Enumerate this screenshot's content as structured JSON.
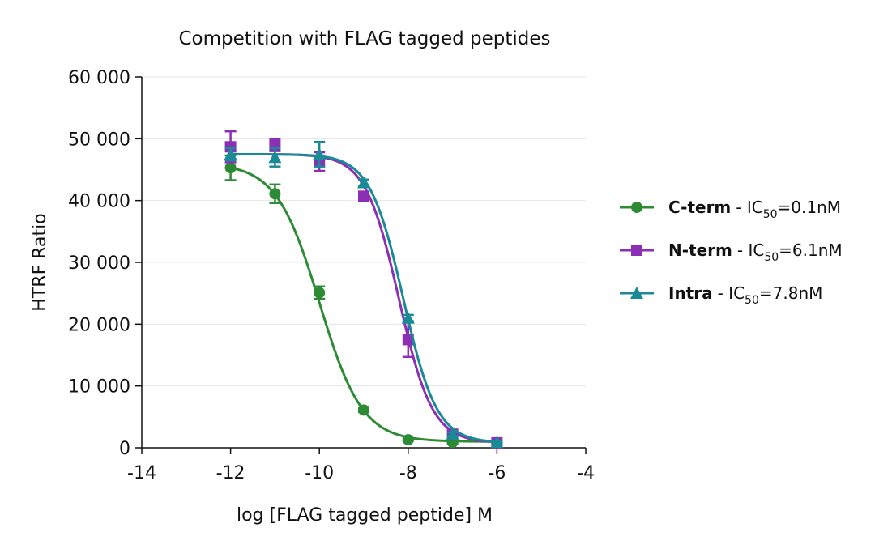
{
  "chart_data": {
    "type": "dose-response",
    "title": "Competition with FLAG tagged peptides",
    "x_label": "log [FLAG tagged peptide] M",
    "y_label": "HTRF Ratio",
    "xlim": [
      -14,
      -4
    ],
    "xticks": [
      -14,
      -12,
      -10,
      -8,
      -6,
      -4
    ],
    "ylim": [
      0,
      60000
    ],
    "yticks": [
      0,
      {
        "value": 10000,
        "label": "10 000"
      },
      {
        "value": 20000,
        "label": "20 000"
      },
      {
        "value": 30000,
        "label": "30 000"
      },
      {
        "value": 40000,
        "label": "40 000"
      },
      {
        "value": 50000,
        "label": "50 000"
      },
      {
        "value": 60000,
        "label": "60 000"
      }
    ],
    "grid": true,
    "legend": "right",
    "x": [
      -12,
      -11,
      -10,
      -9,
      -8,
      -7,
      -6
    ],
    "series": [
      {
        "name": "C-term",
        "color": "#2e8b35",
        "marker": "circle",
        "values": [
          45300,
          41100,
          25100,
          6100,
          1300,
          900,
          800
        ],
        "errors": [
          2000,
          1500,
          1000,
          300,
          200,
          200,
          150
        ],
        "ic50": {
          "prefix": "- IC",
          "sub": "50",
          "suffix": "=0.1nM"
        },
        "fit": {
          "top": 46000,
          "bottom": 1000,
          "log_ic50": -10,
          "hill": 0.9
        }
      },
      {
        "name": "N-term",
        "color": "#8b2fb5",
        "marker": "square",
        "values": [
          48700,
          49000,
          46300,
          40700,
          17500,
          2200,
          800
        ],
        "errors": [
          2500,
          1000,
          1500,
          500,
          2800,
          300,
          150
        ],
        "ic50": {
          "prefix": "- IC",
          "sub": "50",
          "suffix": "=6.1nM"
        },
        "fit": {
          "top": 47500,
          "bottom": 800,
          "log_ic50": -8.21,
          "hill": 1.15
        }
      },
      {
        "name": "Intra",
        "color": "#1a8a96",
        "marker": "triangle",
        "values": [
          47500,
          47000,
          47500,
          42900,
          21000,
          2200,
          900
        ],
        "errors": [
          1000,
          1500,
          2000,
          500,
          500,
          300,
          150
        ],
        "ic50": {
          "prefix": "- IC",
          "sub": "50",
          "suffix": "=7.8nM"
        },
        "fit": {
          "top": 47500,
          "bottom": 800,
          "log_ic50": -8.11,
          "hill": 1.15
        }
      }
    ]
  }
}
